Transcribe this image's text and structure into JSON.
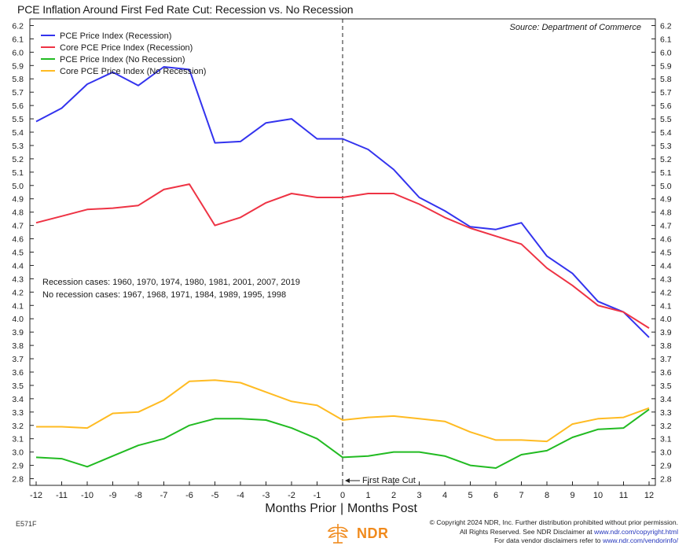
{
  "title": "PCE Inflation Around First Fed Rate Cut: Recession vs. No Recession",
  "source": "Source:   Department of Commerce",
  "notes": {
    "recession": "Recession cases: 1960, 1970, 1974, 1980, 1981, 2001, 2007, 2019",
    "no_recession": "No recession cases: 1967, 1968, 1971, 1984, 1989, 1995, 1998"
  },
  "annotation": "First Rate Cut",
  "axis_label_left": "Months Prior",
  "axis_label_right": "Months Post",
  "footer": {
    "code": "E571F",
    "copyright_line1": "© Copyright 2024 NDR, Inc. Further distribution prohibited without prior permission.",
    "copyright_line2_pre": "All Rights Reserved. See NDR Disclaimer at ",
    "copyright_line2_link": "www.ndr.com/copyright.html",
    "copyright_line3_pre": "For data vendor disclaimers refer to ",
    "copyright_line3_link": "www.ndr.com/vendorinfo/",
    "logo_text": "NDR"
  },
  "chart_data": {
    "type": "line",
    "x": [
      -12,
      -11,
      -10,
      -9,
      -8,
      -7,
      -6,
      -5,
      -4,
      -3,
      -2,
      -1,
      0,
      1,
      2,
      3,
      4,
      5,
      6,
      7,
      8,
      9,
      10,
      11,
      12
    ],
    "x_tick_labels": [
      "-12",
      "-11",
      "-10",
      "-9",
      "-8",
      "-7",
      "-6",
      "-5",
      "-4",
      "-3",
      "-2",
      "-1",
      "0",
      "1",
      "2",
      "3",
      "4",
      "5",
      "6",
      "7",
      "8",
      "9",
      "10",
      "11",
      "12"
    ],
    "ylim": [
      2.75,
      6.25
    ],
    "y_ticks": [
      2.8,
      2.9,
      3.0,
      3.1,
      3.2,
      3.3,
      3.4,
      3.5,
      3.6,
      3.7,
      3.8,
      3.9,
      4.0,
      4.1,
      4.2,
      4.3,
      4.4,
      4.5,
      4.6,
      4.7,
      4.8,
      4.9,
      5.0,
      5.1,
      5.2,
      5.3,
      5.4,
      5.5,
      5.6,
      5.7,
      5.8,
      5.9,
      6.0,
      6.1,
      6.2
    ],
    "vline_x": 0,
    "legend_position": "top-left",
    "series": [
      {
        "name": "PCE Price Index (Recession)",
        "color": "#3333ee",
        "values": [
          5.48,
          5.58,
          5.76,
          5.85,
          5.75,
          5.89,
          5.87,
          5.32,
          5.33,
          5.47,
          5.5,
          5.35,
          5.35,
          5.27,
          5.12,
          4.91,
          4.81,
          4.69,
          4.67,
          4.72,
          4.47,
          4.34,
          4.13,
          4.05,
          3.86
        ]
      },
      {
        "name": "Core PCE Price Index (Recession)",
        "color": "#ee3344",
        "values": [
          4.72,
          4.77,
          4.82,
          4.83,
          4.85,
          4.97,
          5.01,
          4.7,
          4.76,
          4.87,
          4.94,
          4.91,
          4.91,
          4.94,
          4.94,
          4.86,
          4.76,
          4.68,
          4.62,
          4.56,
          4.38,
          4.25,
          4.1,
          4.05,
          3.93
        ]
      },
      {
        "name": "PCE Price Index (No Recession)",
        "color": "#22bb22",
        "values": [
          2.96,
          2.95,
          2.89,
          2.97,
          3.05,
          3.1,
          3.2,
          3.25,
          3.25,
          3.24,
          3.18,
          3.1,
          2.96,
          2.97,
          3.0,
          3.0,
          2.97,
          2.9,
          2.88,
          2.98,
          3.01,
          3.11,
          3.17,
          3.18,
          3.32
        ]
      },
      {
        "name": "Core PCE Price Index (No Recession)",
        "color": "#ffbb22",
        "values": [
          3.19,
          3.19,
          3.18,
          3.29,
          3.3,
          3.39,
          3.53,
          3.54,
          3.52,
          3.45,
          3.38,
          3.35,
          3.24,
          3.26,
          3.27,
          3.25,
          3.23,
          3.15,
          3.09,
          3.09,
          3.08,
          3.21,
          3.25,
          3.26,
          3.33
        ]
      }
    ]
  }
}
